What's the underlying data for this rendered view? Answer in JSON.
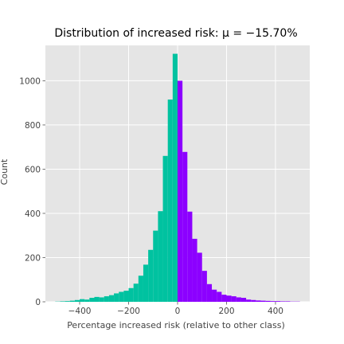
{
  "chart_data": {
    "type": "bar",
    "title": "Distribution of increased risk: μ = −15.70%",
    "xlabel": "Percentage increased risk (relative to other class)",
    "ylabel": "Count",
    "xlim": [
      -540,
      540
    ],
    "ylim": [
      0,
      1160
    ],
    "grid": true,
    "background": "#e5e5e5",
    "grid_color": "#ffffff",
    "colors": {
      "negative": "#00c2a0",
      "positive": "#8c00ff"
    },
    "x_ticks": [
      -400,
      -200,
      0,
      200,
      400
    ],
    "y_ticks": [
      0,
      200,
      400,
      600,
      800,
      1000
    ],
    "x_tick_labels": [
      "−400",
      "−200",
      "0",
      "200",
      "400"
    ],
    "y_tick_labels": [
      "0",
      "200",
      "400",
      "600",
      "800",
      "1000"
    ],
    "bins": [
      {
        "x0": -500,
        "x1": -480,
        "value": 1
      },
      {
        "x0": -480,
        "x1": -460,
        "value": 2
      },
      {
        "x0": -460,
        "x1": -440,
        "value": 3
      },
      {
        "x0": -440,
        "x1": -420,
        "value": 5
      },
      {
        "x0": -420,
        "x1": -400,
        "value": 8
      },
      {
        "x0": -400,
        "x1": -380,
        "value": 12
      },
      {
        "x0": -380,
        "x1": -360,
        "value": 10
      },
      {
        "x0": -360,
        "x1": -340,
        "value": 18
      },
      {
        "x0": -340,
        "x1": -320,
        "value": 22
      },
      {
        "x0": -320,
        "x1": -300,
        "value": 20
      },
      {
        "x0": -300,
        "x1": -280,
        "value": 25
      },
      {
        "x0": -280,
        "x1": -260,
        "value": 30
      },
      {
        "x0": -260,
        "x1": -240,
        "value": 38
      },
      {
        "x0": -240,
        "x1": -220,
        "value": 45
      },
      {
        "x0": -220,
        "x1": -200,
        "value": 50
      },
      {
        "x0": -200,
        "x1": -180,
        "value": 62
      },
      {
        "x0": -180,
        "x1": -160,
        "value": 82
      },
      {
        "x0": -160,
        "x1": -140,
        "value": 118
      },
      {
        "x0": -140,
        "x1": -120,
        "value": 168
      },
      {
        "x0": -120,
        "x1": -100,
        "value": 235
      },
      {
        "x0": -100,
        "x1": -80,
        "value": 322
      },
      {
        "x0": -80,
        "x1": -60,
        "value": 410
      },
      {
        "x0": -60,
        "x1": -40,
        "value": 660
      },
      {
        "x0": -40,
        "x1": -20,
        "value": 915
      },
      {
        "x0": -20,
        "x1": 0,
        "value": 1122
      },
      {
        "x0": 0,
        "x1": 20,
        "value": 1000
      },
      {
        "x0": 20,
        "x1": 40,
        "value": 678
      },
      {
        "x0": 40,
        "x1": 60,
        "value": 408
      },
      {
        "x0": 60,
        "x1": 80,
        "value": 285
      },
      {
        "x0": 80,
        "x1": 100,
        "value": 222
      },
      {
        "x0": 100,
        "x1": 120,
        "value": 140
      },
      {
        "x0": 120,
        "x1": 140,
        "value": 80
      },
      {
        "x0": 140,
        "x1": 160,
        "value": 55
      },
      {
        "x0": 160,
        "x1": 180,
        "value": 45
      },
      {
        "x0": 180,
        "x1": 200,
        "value": 32
      },
      {
        "x0": 200,
        "x1": 220,
        "value": 28
      },
      {
        "x0": 220,
        "x1": 240,
        "value": 25
      },
      {
        "x0": 240,
        "x1": 260,
        "value": 20
      },
      {
        "x0": 260,
        "x1": 280,
        "value": 18
      },
      {
        "x0": 280,
        "x1": 300,
        "value": 10
      },
      {
        "x0": 300,
        "x1": 320,
        "value": 8
      },
      {
        "x0": 320,
        "x1": 340,
        "value": 6
      },
      {
        "x0": 340,
        "x1": 360,
        "value": 5
      },
      {
        "x0": 360,
        "x1": 380,
        "value": 4
      },
      {
        "x0": 380,
        "x1": 400,
        "value": 3
      },
      {
        "x0": 400,
        "x1": 420,
        "value": 3
      },
      {
        "x0": 420,
        "x1": 440,
        "value": 2
      },
      {
        "x0": 440,
        "x1": 460,
        "value": 2
      },
      {
        "x0": 460,
        "x1": 480,
        "value": 1
      },
      {
        "x0": 480,
        "x1": 500,
        "value": 1
      }
    ]
  }
}
